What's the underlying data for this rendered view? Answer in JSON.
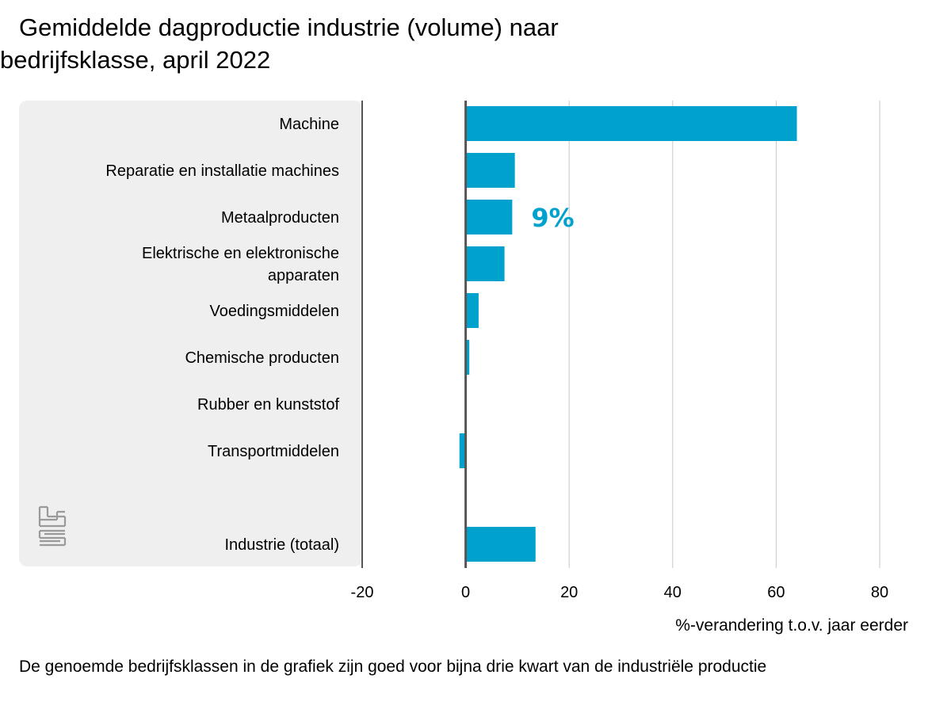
{
  "title_line1": "Gemiddelde dagproductie industrie (volume) naar",
  "title_line2": "bedrijfsklasse, april 2022",
  "footer": "De genoemde bedrijfsklassen in de grafiek zijn goed voor bijna drie kwart van de industriële productie",
  "logo": "cbs-logo",
  "chart_data": {
    "type": "bar",
    "orientation": "horizontal",
    "categories": [
      [
        "Machine"
      ],
      [
        "Reparatie en installatie machines"
      ],
      [
        "Metaalproducten"
      ],
      [
        "Elektrische en elektronische",
        "apparaten"
      ],
      [
        "Voedingsmiddelen"
      ],
      [
        "Chemische producten"
      ],
      [
        "Rubber en kunststof"
      ],
      [
        "Transportmiddelen"
      ],
      [
        "Industrie (totaal)"
      ]
    ],
    "values": [
      64,
      9.5,
      9,
      7.5,
      2.5,
      0.7,
      0,
      -1.2,
      13.5
    ],
    "xlabel": "%-verandering t.o.v. jaar eerder",
    "xlim": [
      -20,
      80
    ],
    "xticks": [
      "-20",
      "0",
      "20",
      "40",
      "60",
      "80"
    ],
    "grid": true,
    "annotation": {
      "text": "9%",
      "category_index": 2
    },
    "colors": {
      "bar": "#00a1cd",
      "annotation": "#00a1cd",
      "zero_line": "#555555",
      "grid": "#c8c8c8",
      "panel": "#efefef"
    }
  }
}
